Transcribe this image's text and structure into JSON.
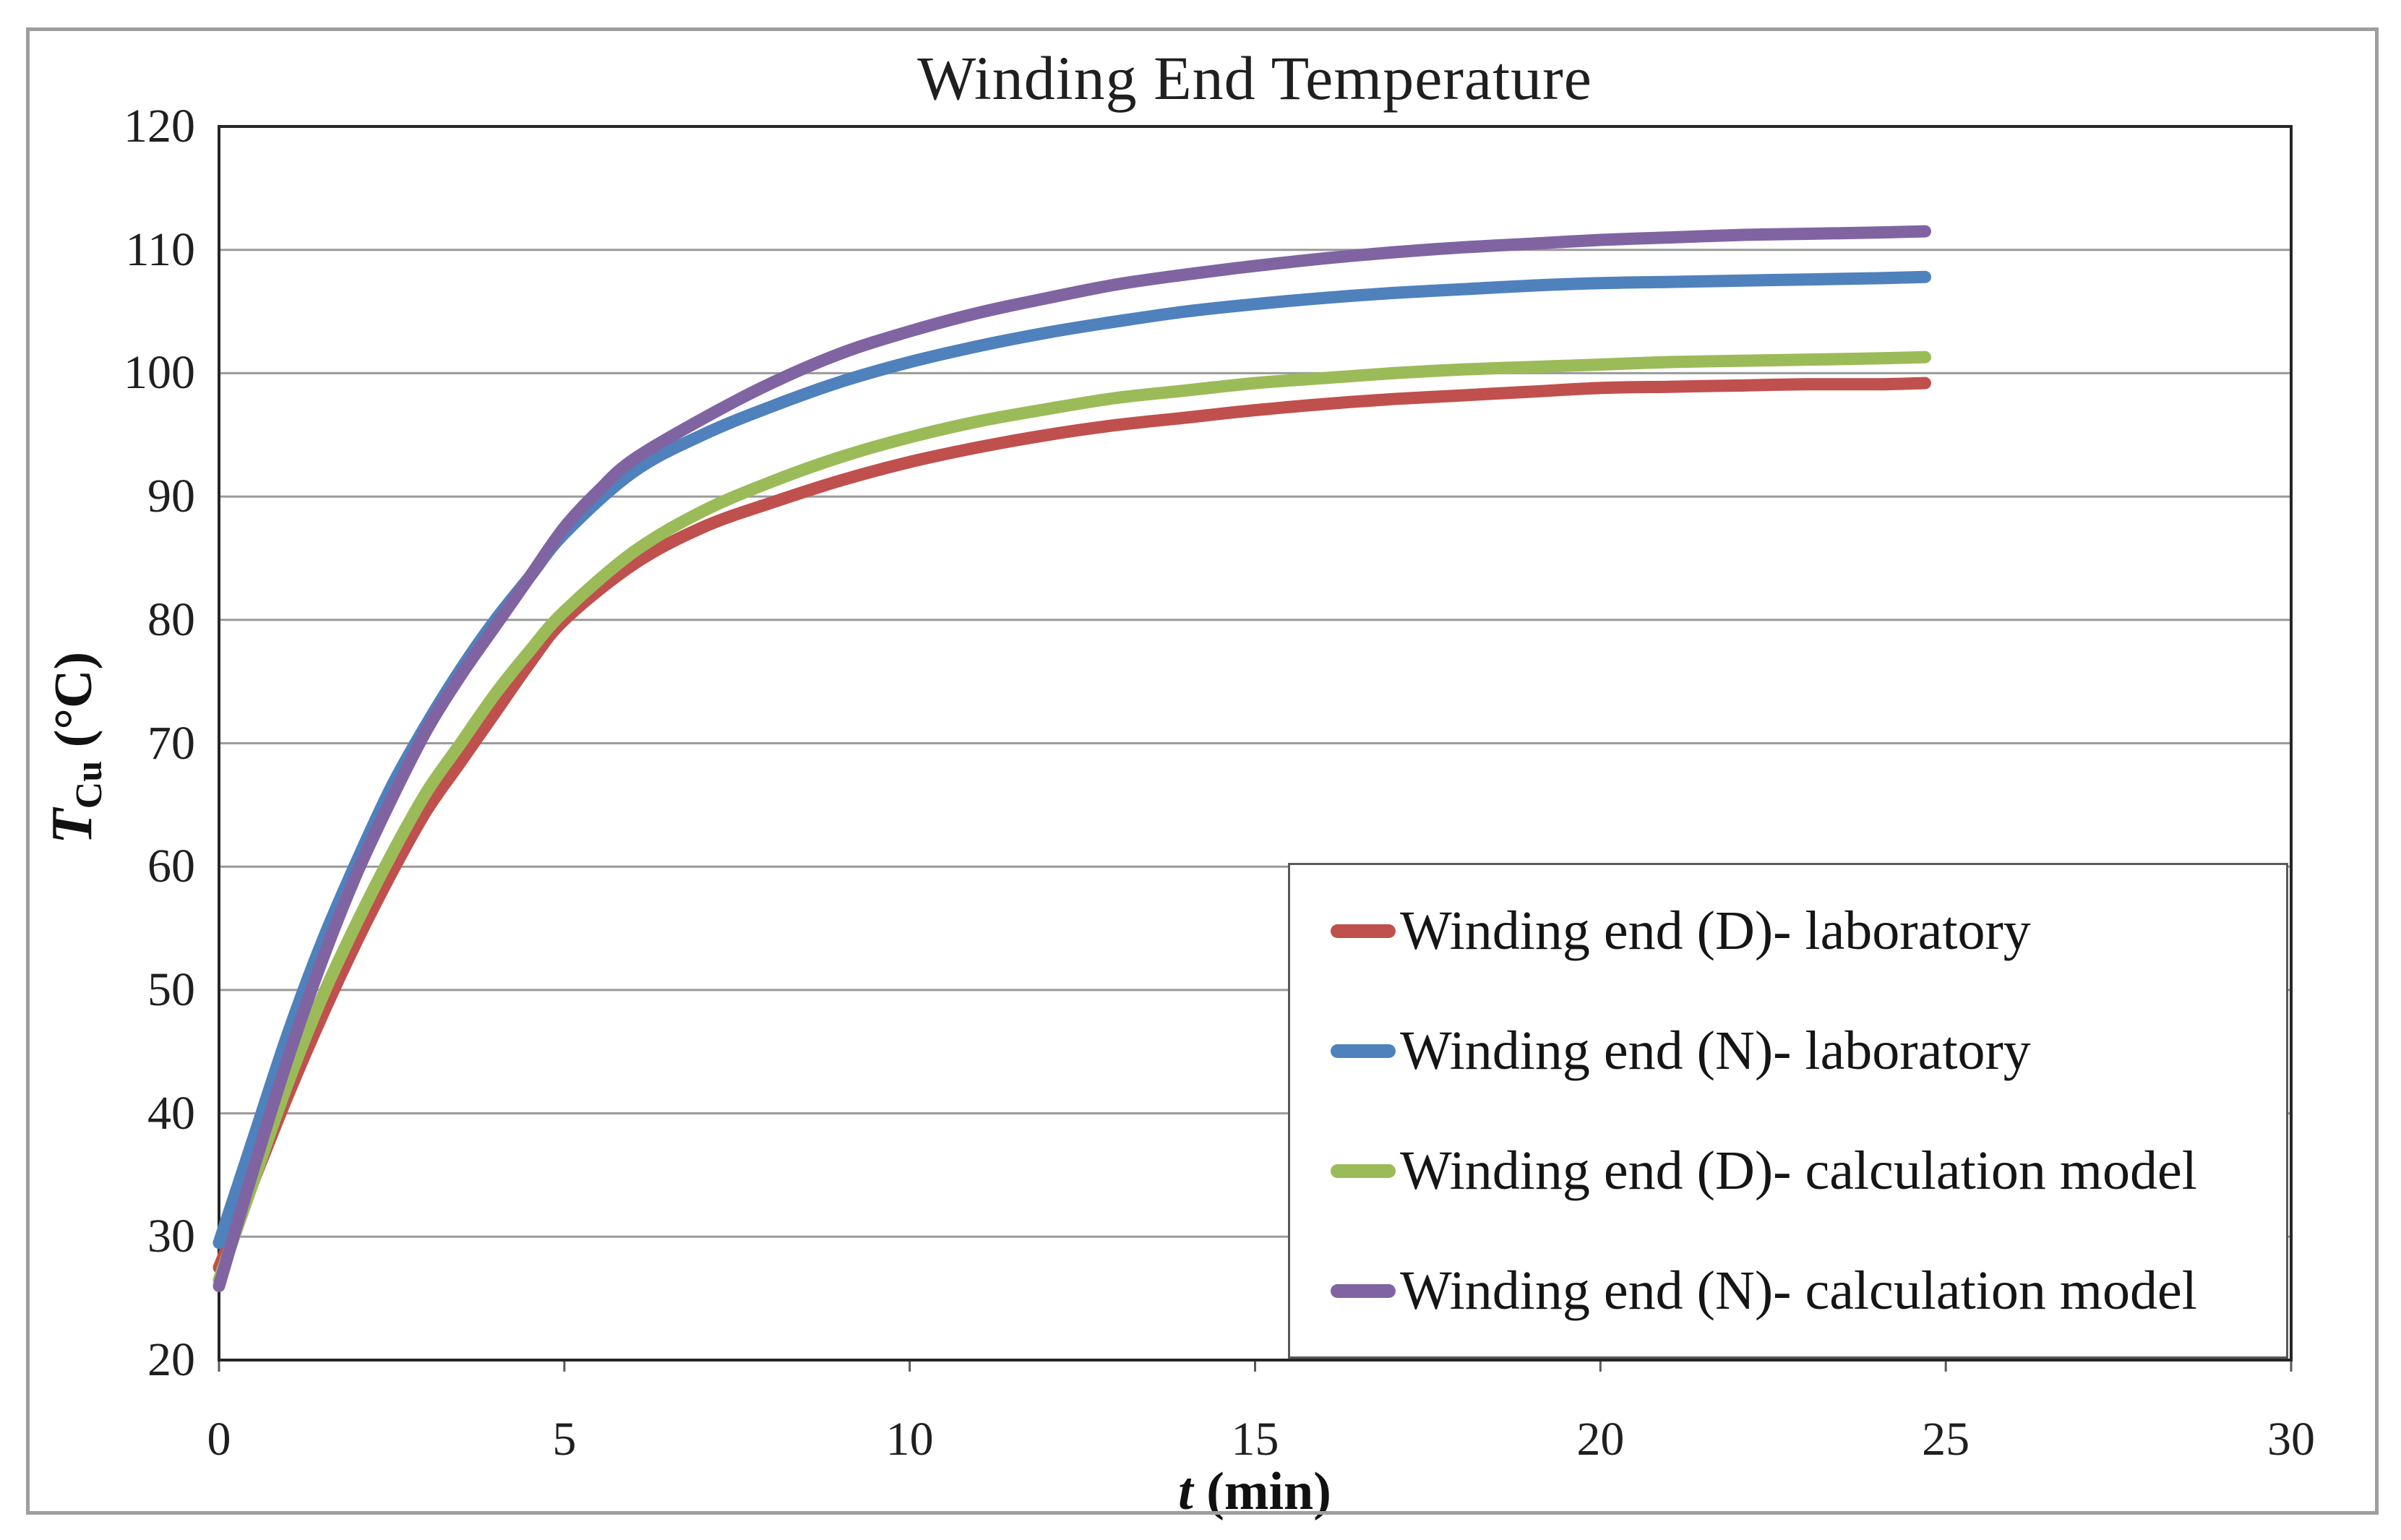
{
  "figure": {
    "title": "Winding End Temperature"
  },
  "axes": {
    "x": {
      "symbol": "t",
      "unit": " (min)",
      "ticks": [
        0,
        5,
        10,
        15,
        20,
        25,
        30
      ],
      "min": 0,
      "max": 30
    },
    "y": {
      "symbol": "T",
      "subscript": "Cu",
      "unit": " (°C)",
      "ticks": [
        120,
        110,
        100,
        90,
        80,
        70,
        60,
        50,
        40,
        30,
        20
      ],
      "min": 20,
      "max": 120
    }
  },
  "colors": {
    "red": "#C0504D",
    "blue": "#4F81BD",
    "green": "#9BBB59",
    "purple": "#8064A2",
    "gridline": "#9a9a9a",
    "plot_frame": "#262626",
    "tick_mark": "#595959",
    "outer_border": "#9e9e9e"
  },
  "legend": {
    "items": [
      {
        "label": "Winding end (D)- laboratory",
        "color_key": "red"
      },
      {
        "label": "Winding end (N)- laboratory",
        "color_key": "blue"
      },
      {
        "label": "Winding end (D)- calculation model",
        "color_key": "green"
      },
      {
        "label": "Winding end (N)- calculation model",
        "color_key": "purple"
      }
    ]
  },
  "chart_data": {
    "type": "line",
    "title": "Winding End Temperature",
    "xlabel": "t (min)",
    "ylabel": "T_Cu (°C)",
    "xlim": [
      0,
      30
    ],
    "ylim": [
      20,
      120
    ],
    "x_tick_step": 5,
    "y_tick_step": 10,
    "grid": "horizontal",
    "legend_position": "inside lower right",
    "series": [
      {
        "name": "Winding end (D)- laboratory",
        "color_key": "red",
        "points": [
          [
            0,
            27.5
          ],
          [
            0.5,
            34.5
          ],
          [
            1,
            41.5
          ],
          [
            1.5,
            48
          ],
          [
            2,
            54
          ],
          [
            2.5,
            59.5
          ],
          [
            3,
            64.5
          ],
          [
            3.5,
            68.5
          ],
          [
            4,
            72.5
          ],
          [
            4.5,
            76.5
          ],
          [
            5,
            80
          ],
          [
            6,
            84.5
          ],
          [
            7,
            87.5
          ],
          [
            8,
            89.5
          ],
          [
            9,
            91.3
          ],
          [
            10,
            92.8
          ],
          [
            11,
            94
          ],
          [
            12,
            95
          ],
          [
            13,
            95.8
          ],
          [
            14,
            96.4
          ],
          [
            15,
            97
          ],
          [
            16,
            97.5
          ],
          [
            17,
            97.9
          ],
          [
            18,
            98.2
          ],
          [
            19,
            98.5
          ],
          [
            20,
            98.8
          ],
          [
            21,
            98.9
          ],
          [
            22,
            99
          ],
          [
            23,
            99.1
          ],
          [
            24,
            99.1
          ],
          [
            24.7,
            99.2
          ]
        ]
      },
      {
        "name": "Winding end (N)- laboratory",
        "color_key": "blue",
        "points": [
          [
            0,
            29.5
          ],
          [
            0.5,
            38
          ],
          [
            1,
            46.5
          ],
          [
            1.5,
            54
          ],
          [
            2,
            60.5
          ],
          [
            2.5,
            66.5
          ],
          [
            3,
            71.5
          ],
          [
            3.5,
            76
          ],
          [
            4,
            80
          ],
          [
            4.5,
            83.5
          ],
          [
            5,
            87
          ],
          [
            6,
            92
          ],
          [
            7,
            95
          ],
          [
            8,
            97.3
          ],
          [
            9,
            99.3
          ],
          [
            10,
            100.9
          ],
          [
            11,
            102.2
          ],
          [
            12,
            103.3
          ],
          [
            13,
            104.2
          ],
          [
            14,
            105
          ],
          [
            15,
            105.6
          ],
          [
            16,
            106.1
          ],
          [
            17,
            106.5
          ],
          [
            18,
            106.8
          ],
          [
            19,
            107.1
          ],
          [
            20,
            107.3
          ],
          [
            21,
            107.4
          ],
          [
            22,
            107.5
          ],
          [
            23,
            107.6
          ],
          [
            24,
            107.7
          ],
          [
            24.7,
            107.8
          ]
        ]
      },
      {
        "name": "Winding end (D)- calculation model",
        "color_key": "green",
        "points": [
          [
            0,
            26.5
          ],
          [
            0.5,
            34.5
          ],
          [
            1,
            42.5
          ],
          [
            1.5,
            49.5
          ],
          [
            2,
            55.5
          ],
          [
            2.5,
            61
          ],
          [
            3,
            66
          ],
          [
            3.5,
            70
          ],
          [
            4,
            74
          ],
          [
            4.5,
            77.5
          ],
          [
            5,
            80.7
          ],
          [
            6,
            85.5
          ],
          [
            7,
            88.8
          ],
          [
            8,
            91.2
          ],
          [
            9,
            93.2
          ],
          [
            10,
            94.8
          ],
          [
            11,
            96.1
          ],
          [
            12,
            97.1
          ],
          [
            13,
            98
          ],
          [
            14,
            98.6
          ],
          [
            15,
            99.2
          ],
          [
            16,
            99.6
          ],
          [
            17,
            100
          ],
          [
            18,
            100.3
          ],
          [
            19,
            100.5
          ],
          [
            20,
            100.7
          ],
          [
            21,
            100.9
          ],
          [
            22,
            101
          ],
          [
            23,
            101.1
          ],
          [
            24,
            101.2
          ],
          [
            24.7,
            101.3
          ]
        ]
      },
      {
        "name": "Winding end (N)- calculation model",
        "color_key": "purple",
        "points": [
          [
            0,
            26
          ],
          [
            0.5,
            35.5
          ],
          [
            1,
            44.5
          ],
          [
            1.5,
            52.5
          ],
          [
            2,
            59.5
          ],
          [
            2.5,
            65.5
          ],
          [
            3,
            71
          ],
          [
            3.5,
            75.5
          ],
          [
            4,
            79.5
          ],
          [
            4.5,
            83.5
          ],
          [
            5,
            87.5
          ],
          [
            5.5,
            90.5
          ],
          [
            6,
            93
          ],
          [
            7,
            96.3
          ],
          [
            8,
            99.2
          ],
          [
            9,
            101.6
          ],
          [
            10,
            103.4
          ],
          [
            11,
            104.9
          ],
          [
            12,
            106.1
          ],
          [
            13,
            107.2
          ],
          [
            14,
            108
          ],
          [
            15,
            108.7
          ],
          [
            16,
            109.3
          ],
          [
            17,
            109.8
          ],
          [
            18,
            110.2
          ],
          [
            19,
            110.5
          ],
          [
            20,
            110.8
          ],
          [
            21,
            111
          ],
          [
            22,
            111.2
          ],
          [
            23,
            111.3
          ],
          [
            24,
            111.4
          ],
          [
            24.7,
            111.5
          ]
        ]
      }
    ]
  }
}
